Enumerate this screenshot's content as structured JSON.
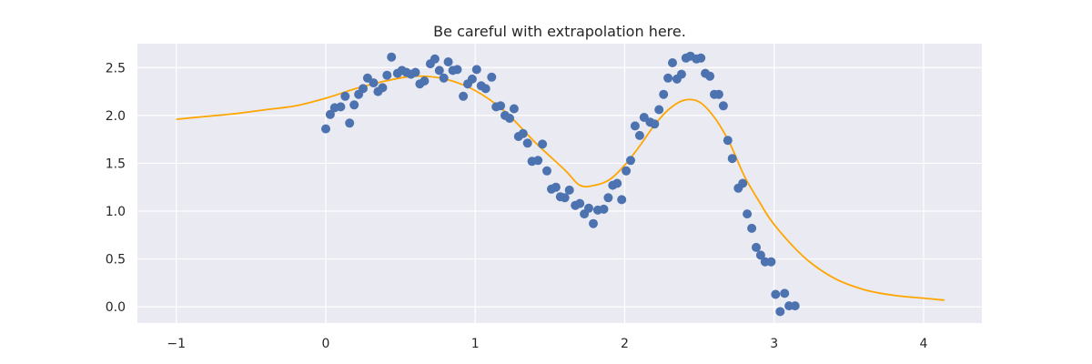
{
  "chart_data": {
    "type": "scatter",
    "title": "Be careful with extrapolation here.",
    "xlabel": "",
    "ylabel": "",
    "xlim": [
      -1.26,
      4.39
    ],
    "ylim": [
      -0.17,
      2.75
    ],
    "x_ticks": [
      -1,
      0,
      1,
      2,
      3,
      4
    ],
    "x_tick_labels": [
      "−1",
      "0",
      "1",
      "2",
      "3",
      "4"
    ],
    "y_ticks": [
      0.0,
      0.5,
      1.0,
      1.5,
      2.0,
      2.5
    ],
    "y_tick_labels": [
      "0.0",
      "0.5",
      "1.0",
      "1.5",
      "2.0",
      "2.5"
    ],
    "grid": true,
    "colors": {
      "plot_background": "#eaeaf2",
      "grid": "#ffffff",
      "points": "#4c72b0",
      "curve": "#ffa500",
      "text": "#262626"
    },
    "series": [
      {
        "kind": "scatter",
        "x": [
          0.0,
          0.03,
          0.06,
          0.1,
          0.13,
          0.16,
          0.19,
          0.22,
          0.25,
          0.28,
          0.32,
          0.35,
          0.38,
          0.41,
          0.44,
          0.48,
          0.51,
          0.54,
          0.57,
          0.6,
          0.63,
          0.66,
          0.7,
          0.73,
          0.76,
          0.79,
          0.82,
          0.85,
          0.88,
          0.92,
          0.95,
          0.98,
          1.01,
          1.04,
          1.07,
          1.11,
          1.14,
          1.17,
          1.2,
          1.23,
          1.26,
          1.29,
          1.32,
          1.35,
          1.38,
          1.42,
          1.45,
          1.48,
          1.51,
          1.54,
          1.57,
          1.6,
          1.63,
          1.67,
          1.7,
          1.73,
          1.76,
          1.79,
          1.82,
          1.86,
          1.89,
          1.92,
          1.95,
          1.98,
          2.01,
          2.04,
          2.07,
          2.1,
          2.13,
          2.17,
          2.2,
          2.23,
          2.26,
          2.29,
          2.32,
          2.35,
          2.38,
          2.41,
          2.44,
          2.48,
          2.51,
          2.54,
          2.57,
          2.6,
          2.63,
          2.66,
          2.69,
          2.72,
          2.76,
          2.79,
          2.82,
          2.85,
          2.88,
          2.91,
          2.94,
          2.98,
          3.01,
          3.04,
          3.07,
          3.1,
          3.14
        ],
        "y": [
          1.86,
          2.01,
          2.08,
          2.09,
          2.2,
          1.92,
          2.11,
          2.22,
          2.28,
          2.39,
          2.34,
          2.25,
          2.29,
          2.42,
          2.61,
          2.44,
          2.47,
          2.45,
          2.43,
          2.45,
          2.33,
          2.36,
          2.54,
          2.59,
          2.47,
          2.39,
          2.56,
          2.47,
          2.48,
          2.2,
          2.33,
          2.38,
          2.48,
          2.31,
          2.28,
          2.4,
          2.09,
          2.1,
          2.0,
          1.97,
          2.07,
          1.78,
          1.81,
          1.71,
          1.52,
          1.53,
          1.7,
          1.42,
          1.23,
          1.25,
          1.15,
          1.14,
          1.22,
          1.06,
          1.08,
          0.97,
          1.03,
          0.87,
          1.01,
          1.02,
          1.14,
          1.27,
          1.29,
          1.12,
          1.42,
          1.53,
          1.89,
          1.79,
          1.98,
          1.93,
          1.91,
          2.06,
          2.22,
          2.39,
          2.55,
          2.38,
          2.43,
          2.6,
          2.62,
          2.59,
          2.6,
          2.44,
          2.41,
          2.22,
          2.22,
          2.1,
          1.74,
          1.55,
          1.24,
          1.29,
          0.97,
          0.82,
          0.62,
          0.54,
          0.47,
          0.47,
          0.13,
          -0.05,
          0.14,
          0.01,
          0.01
        ]
      },
      {
        "kind": "line",
        "x": [
          -1.0,
          -0.8,
          -0.6,
          -0.4,
          -0.2,
          0.0,
          0.2,
          0.4,
          0.6,
          0.8,
          1.0,
          1.2,
          1.4,
          1.6,
          1.7,
          1.8,
          1.9,
          2.0,
          2.1,
          2.2,
          2.3,
          2.4,
          2.5,
          2.6,
          2.7,
          2.8,
          2.9,
          3.0,
          3.2,
          3.4,
          3.6,
          3.8,
          4.0,
          4.14
        ],
        "y": [
          1.96,
          1.99,
          2.02,
          2.06,
          2.1,
          2.18,
          2.28,
          2.36,
          2.41,
          2.38,
          2.26,
          2.04,
          1.72,
          1.43,
          1.27,
          1.27,
          1.33,
          1.48,
          1.68,
          1.9,
          2.07,
          2.16,
          2.14,
          1.98,
          1.72,
          1.37,
          1.1,
          0.86,
          0.52,
          0.3,
          0.18,
          0.12,
          0.09,
          0.07
        ]
      }
    ]
  }
}
